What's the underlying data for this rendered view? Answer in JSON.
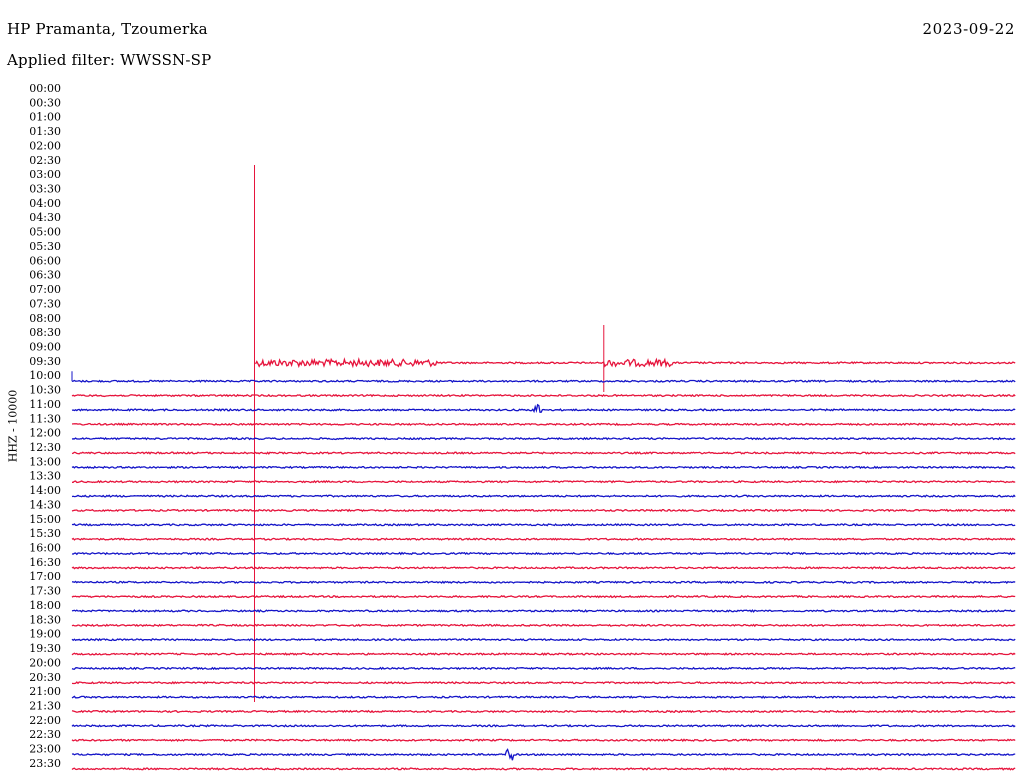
{
  "header": {
    "station": "HP Pramanta, Tzoumerka",
    "date": "2023-09-22",
    "filter_label": "Applied filter: WWSSN-SP"
  },
  "colors": {
    "blue": "#1414c8",
    "red": "#e6143c"
  },
  "chart_data": {
    "type": "line",
    "subtype": "helicorder",
    "title": "HP Pramanta, Tzoumerka",
    "ylabel": "HHZ - 10000",
    "rows": [
      "00:00",
      "00:30",
      "01:00",
      "01:30",
      "02:00",
      "02:30",
      "03:00",
      "03:30",
      "04:00",
      "04:30",
      "05:00",
      "05:30",
      "06:00",
      "06:30",
      "07:00",
      "07:30",
      "08:00",
      "08:30",
      "09:00",
      "09:30",
      "10:00",
      "10:30",
      "11:00",
      "11:30",
      "12:00",
      "12:30",
      "13:00",
      "13:30",
      "14:00",
      "14:30",
      "15:00",
      "15:30",
      "16:00",
      "16:30",
      "17:00",
      "17:30",
      "18:00",
      "18:30",
      "19:00",
      "19:30",
      "20:00",
      "20:30",
      "21:00",
      "21:30",
      "22:00",
      "22:30",
      "23:00",
      "23:30"
    ],
    "recording_start": "09:30",
    "row_colors": [
      "red",
      "blue"
    ],
    "events": [
      {
        "row": "09:30",
        "start_min": 5.8,
        "end_min": 11.6,
        "type": "burst"
      },
      {
        "row": "09:30",
        "start_min": 16.9,
        "end_min": 19.1,
        "type": "burst"
      },
      {
        "row": "09:30",
        "at_min": 5.8,
        "type": "spike"
      },
      {
        "row": "09:30",
        "at_min": 16.9,
        "type": "spike"
      },
      {
        "row": "11:00",
        "at_min": 14.8,
        "type": "blip"
      },
      {
        "row": "23:00",
        "at_min": 13.9,
        "type": "blip"
      }
    ]
  }
}
